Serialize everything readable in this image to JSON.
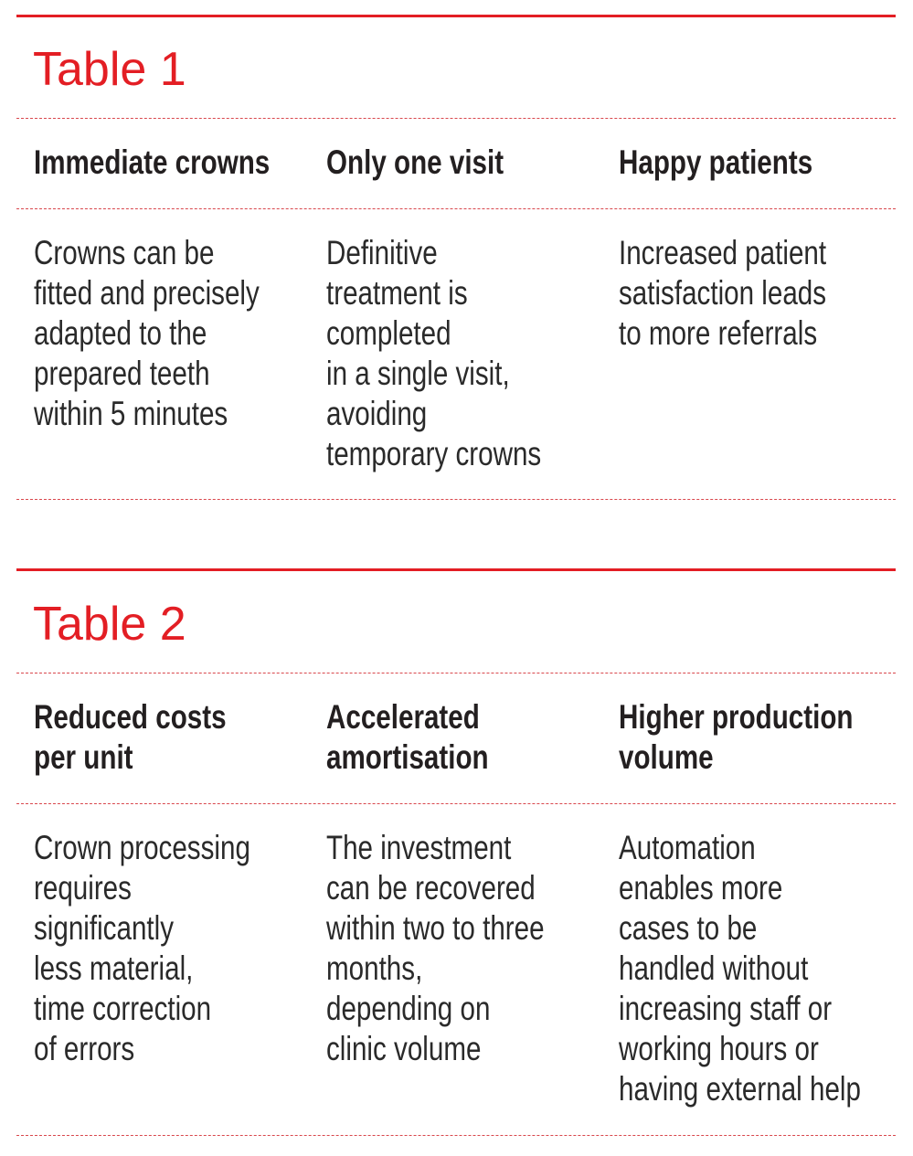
{
  "colors": {
    "accent": "#e31e24",
    "text": "#231f20"
  },
  "tables": [
    {
      "title": "Table 1",
      "columns": [
        {
          "header": [
            "Immediate crowns"
          ],
          "body": [
            "Crowns can be",
            "fitted and precisely",
            "adapted to the",
            "prepared teeth",
            "within 5 minutes"
          ]
        },
        {
          "header": [
            "Only one visit"
          ],
          "body": [
            "Definitive",
            "treatment is",
            "completed",
            "in a single visit,",
            "avoiding",
            "temporary crowns"
          ]
        },
        {
          "header": [
            "Happy patients"
          ],
          "body": [
            "Increased patient",
            "satisfaction leads",
            "to more referrals"
          ]
        }
      ]
    },
    {
      "title": "Table 2",
      "columns": [
        {
          "header": [
            "Reduced costs",
            "per unit"
          ],
          "body": [
            "Crown processing",
            "requires",
            "significantly",
            "less material,",
            "time correction",
            "of errors"
          ]
        },
        {
          "header": [
            "Accelerated",
            "amortisation"
          ],
          "body": [
            "The investment",
            "can be recovered",
            "within two to three",
            "months,",
            "depending on",
            "clinic volume"
          ]
        },
        {
          "header": [
            "Higher production",
            "volume"
          ],
          "body": [
            "Automation",
            "enables more",
            "cases to be",
            "handled without",
            "increasing staff or",
            "working hours or",
            "having external help"
          ]
        }
      ]
    }
  ]
}
